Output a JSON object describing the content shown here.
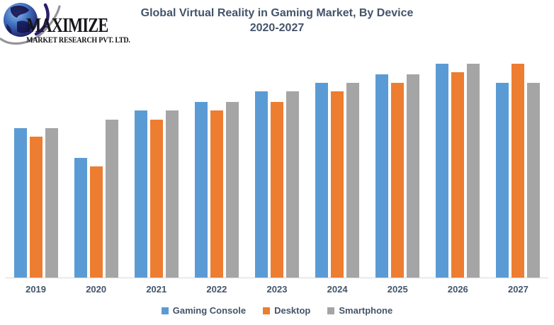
{
  "logo": {
    "line1": "MAXIMIZE",
    "line2": "MARKET RESEARCH PVT. LTD."
  },
  "title": {
    "line1": "Global Virtual Reality in Gaming Market, By Device",
    "line2": "2020-2027"
  },
  "colors": {
    "gaming_console": "#5B9BD5",
    "desktop": "#ED7D31",
    "smartphone": "#A5A5A5",
    "title_text": "#44546A",
    "axis_label_text": "#44546A",
    "axis_line": "#D9D9D9"
  },
  "chart_data": {
    "type": "bar",
    "title": "Global Virtual Reality in Gaming Market, By Device 2020-2027",
    "categories": [
      "2019",
      "2020",
      "2021",
      "2022",
      "2023",
      "2024",
      "2025",
      "2026",
      "2027"
    ],
    "series": [
      {
        "name": "Gaming Console",
        "color": "#5B9BD5",
        "values": [
          70,
          56,
          78,
          82,
          87,
          91,
          95,
          100,
          91
        ]
      },
      {
        "name": "Desktop",
        "color": "#ED7D31",
        "values": [
          66,
          52,
          74,
          78,
          82,
          87,
          91,
          96,
          100
        ]
      },
      {
        "name": "Smartphone",
        "color": "#A5A5A5",
        "values": [
          70,
          74,
          78,
          82,
          87,
          91,
          95,
          100,
          91
        ]
      }
    ],
    "values_note": "relative scale, y-axis not shown in chart",
    "xlabel": "",
    "ylabel": "",
    "ylim": [
      0,
      110
    ],
    "y_axis_visible": false,
    "grid": false,
    "legend_position": "bottom"
  }
}
